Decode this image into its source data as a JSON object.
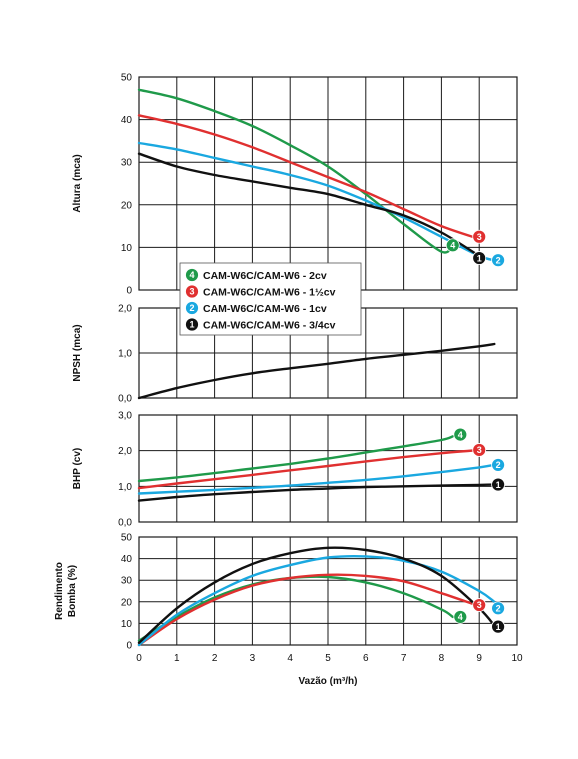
{
  "chart_data": {
    "type": "line",
    "xlabel": "Vazão (m³/h)",
    "xticks": [
      "0",
      "1",
      "2",
      "3",
      "4",
      "5",
      "6",
      "7",
      "8",
      "9",
      "10"
    ],
    "xlim": [
      0,
      10
    ],
    "series_meta": [
      {
        "id": "4",
        "name": "CAM-W6C/CAM-W6 - 2cv",
        "color": "#1f9a4a"
      },
      {
        "id": "3",
        "name": "CAM-W6C/CAM-W6 - 1½cv",
        "color": "#e03030"
      },
      {
        "id": "2",
        "name": "CAM-W6C/CAM-W6 - 1cv",
        "color": "#1aa8e0"
      },
      {
        "id": "1",
        "name": "CAM-W6C/CAM-W6 - 3/4cv",
        "color": "#111111"
      }
    ],
    "panels": [
      {
        "key": "altura",
        "ylabel": [
          "Altura (mca)"
        ],
        "ylim": [
          0,
          50
        ],
        "yticks": [
          "0",
          "10",
          "20",
          "30",
          "40",
          "50"
        ],
        "series": [
          {
            "id": "4",
            "x": [
              0,
              1,
              2,
              3,
              4,
              5,
              6,
              7,
              8,
              8.3
            ],
            "y": [
              47,
              45,
              42,
              38.5,
              34,
              29,
              22.5,
              15.5,
              9,
              10.5
            ],
            "badge": [
              8.3,
              10.5
            ]
          },
          {
            "id": "3",
            "x": [
              0,
              1,
              2,
              3,
              4,
              5,
              6,
              7,
              8,
              9
            ],
            "y": [
              41,
              39,
              36.5,
              33.5,
              30,
              26.5,
              23,
              19,
              15,
              12
            ],
            "badge": [
              9.0,
              12.5
            ]
          },
          {
            "id": "2",
            "x": [
              0,
              1,
              2,
              3,
              4,
              5,
              6,
              7,
              8,
              9,
              9.4
            ],
            "y": [
              34.5,
              33,
              31,
              29,
              27,
              24.5,
              21,
              17,
              12.5,
              8,
              7
            ],
            "badge": [
              9.5,
              7
            ]
          },
          {
            "id": "1",
            "x": [
              0,
              1,
              2,
              3,
              4,
              5,
              6,
              7,
              8,
              9
            ],
            "y": [
              32,
              29,
              27,
              25.5,
              24,
              22.5,
              20,
              17.5,
              13.5,
              8
            ],
            "badge": [
              9.0,
              7.5
            ]
          }
        ]
      },
      {
        "key": "npsh",
        "ylabel": [
          "NPSH (mca)"
        ],
        "ylim": [
          0,
          2
        ],
        "yticks": [
          "0,0",
          "1,0",
          "2,0"
        ],
        "series": [
          {
            "id": "1",
            "x": [
              0,
              1,
              2,
              3,
              4,
              5,
              6,
              7,
              8,
              9,
              9.4
            ],
            "y": [
              0,
              0.22,
              0.4,
              0.55,
              0.66,
              0.76,
              0.87,
              0.96,
              1.05,
              1.15,
              1.2
            ]
          }
        ]
      },
      {
        "key": "bhp",
        "ylabel": [
          "BHP (cv)"
        ],
        "ylim": [
          0,
          3
        ],
        "yticks": [
          "0,0",
          "1,0",
          "2,0",
          "3,0"
        ],
        "series": [
          {
            "id": "4",
            "x": [
              0,
              1,
              2,
              3,
              4,
              5,
              6,
              7,
              8,
              8.3
            ],
            "y": [
              1.15,
              1.25,
              1.37,
              1.5,
              1.63,
              1.78,
              1.95,
              2.12,
              2.3,
              2.4
            ],
            "badge": [
              8.5,
              2.45
            ]
          },
          {
            "id": "3",
            "x": [
              0,
              1,
              2,
              3,
              4,
              5,
              6,
              7,
              8,
              9
            ],
            "y": [
              0.95,
              1.08,
              1.2,
              1.32,
              1.45,
              1.57,
              1.7,
              1.82,
              1.93,
              2.02
            ],
            "badge": [
              9.0,
              2.02
            ]
          },
          {
            "id": "2",
            "x": [
              0,
              1,
              2,
              3,
              4,
              5,
              6,
              7,
              8,
              9,
              9.4
            ],
            "y": [
              0.8,
              0.85,
              0.9,
              0.96,
              1.02,
              1.1,
              1.18,
              1.28,
              1.4,
              1.53,
              1.6
            ],
            "badge": [
              9.5,
              1.6
            ]
          },
          {
            "id": "1",
            "x": [
              0,
              1,
              2,
              3,
              4,
              5,
              6,
              7,
              8,
              9,
              9.4
            ],
            "y": [
              0.6,
              0.7,
              0.78,
              0.84,
              0.9,
              0.94,
              0.98,
              1.0,
              1.02,
              1.04,
              1.05
            ],
            "badge": [
              9.5,
              1.05
            ]
          }
        ]
      },
      {
        "key": "rendimento",
        "ylabel": [
          "Rendimento",
          "Bomba (%)"
        ],
        "ylim": [
          0,
          50
        ],
        "yticks": [
          "0",
          "10",
          "20",
          "30",
          "40",
          "50"
        ],
        "series": [
          {
            "id": "4",
            "x": [
              0,
              1,
              2,
              3,
              4,
              5,
              6,
              7,
              8,
              8.3
            ],
            "y": [
              2,
              13,
              22,
              28,
              31,
              31.5,
              29,
              24,
              16.5,
              13
            ],
            "badge": [
              8.5,
              13
            ]
          },
          {
            "id": "3",
            "x": [
              0,
              1,
              2,
              3,
              4,
              5,
              6,
              7,
              8,
              9
            ],
            "y": [
              0,
              12,
              21,
              27.5,
              31,
              32.5,
              32,
              29.5,
              24,
              18
            ],
            "badge": [
              9.0,
              18.5
            ]
          },
          {
            "id": "2",
            "x": [
              0,
              1,
              2,
              3,
              4,
              5,
              6,
              7,
              8,
              9,
              9.4
            ],
            "y": [
              0,
              14,
              24,
              32,
              37,
              40.5,
              41,
              39,
              34,
              25,
              20
            ],
            "badge": [
              9.5,
              17
            ]
          },
          {
            "id": "1",
            "x": [
              0,
              1,
              2,
              3,
              4,
              5,
              6,
              7,
              8,
              9,
              9.4
            ],
            "y": [
              1,
              17,
              29,
              37.5,
              42.5,
              45,
              44,
              40,
              32,
              17,
              9
            ],
            "badge": [
              9.5,
              8.5
            ]
          }
        ]
      }
    ],
    "legend": {
      "placement": "inside-altura-bottom-left"
    }
  }
}
